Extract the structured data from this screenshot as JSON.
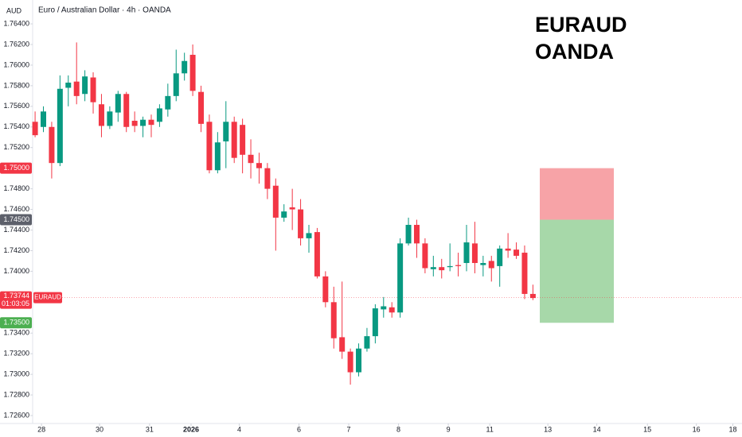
{
  "chart_data": {
    "type": "candlestick",
    "header": "Euro / Australian Dollar · 4h · OANDA",
    "currency": "AUD",
    "annotation_lines": [
      "EURAUD",
      "OANDA"
    ],
    "up_color": "#089981",
    "down_color": "#f23645",
    "x": [
      0,
      1,
      2,
      3,
      4,
      5,
      6,
      7,
      8,
      9,
      10,
      11,
      12,
      13,
      14,
      15,
      16,
      17,
      18,
      19,
      20,
      21,
      22,
      23,
      24,
      25,
      26,
      27,
      28,
      29,
      30,
      31,
      32,
      33,
      34,
      35,
      36,
      37,
      38,
      39,
      40,
      41,
      42,
      43,
      44,
      45,
      46,
      47,
      48,
      49,
      50,
      51,
      52,
      53,
      54,
      55,
      56,
      57,
      58,
      59,
      60
    ],
    "open": [
      1.7545,
      1.754,
      1.754,
      1.7505,
      1.7578,
      1.7584,
      1.7572,
      1.7588,
      1.7562,
      1.7541,
      1.7554,
      1.7572,
      1.7546,
      1.7541,
      1.7547,
      1.7545,
      1.7557,
      1.757,
      1.7592,
      1.761,
      1.7574,
      1.7545,
      1.7498,
      1.7526,
      1.7545,
      1.7542,
      1.7513,
      1.7505,
      1.75,
      1.7483,
      1.7452,
      1.7462,
      1.746,
      1.7432,
      1.7438,
      1.7395,
      1.737,
      1.7336,
      1.7322,
      1.7302,
      1.7325,
      1.7337,
      1.7363,
      1.7365,
      1.736,
      1.7427,
      1.7445,
      1.7427,
      1.7402,
      1.7404,
      1.7404,
      1.7406,
      1.7408,
      1.7427,
      1.7406,
      1.741,
      1.7405,
      1.7422,
      1.7421,
      1.7418,
      1.7378
    ],
    "high": [
      1.7555,
      1.756,
      1.7545,
      1.759,
      1.759,
      1.7622,
      1.7595,
      1.7593,
      1.7572,
      1.756,
      1.7575,
      1.7574,
      1.7555,
      1.755,
      1.7552,
      1.7562,
      1.7582,
      1.7615,
      1.7612,
      1.762,
      1.758,
      1.7552,
      1.7535,
      1.7565,
      1.755,
      1.7548,
      1.7528,
      1.7515,
      1.7505,
      1.749,
      1.7465,
      1.748,
      1.747,
      1.7445,
      1.7442,
      1.74,
      1.7385,
      1.739,
      1.7325,
      1.733,
      1.7345,
      1.7368,
      1.7375,
      1.737,
      1.7432,
      1.7452,
      1.745,
      1.7432,
      1.7415,
      1.7412,
      1.7427,
      1.7418,
      1.7445,
      1.7448,
      1.7415,
      1.7415,
      1.7425,
      1.7437,
      1.7428,
      1.7425,
      1.7387
    ],
    "low": [
      1.753,
      1.7535,
      1.749,
      1.7502,
      1.756,
      1.7562,
      1.7565,
      1.7553,
      1.753,
      1.7538,
      1.7545,
      1.7535,
      1.7535,
      1.753,
      1.753,
      1.754,
      1.755,
      1.7565,
      1.7585,
      1.757,
      1.7535,
      1.7495,
      1.7495,
      1.75,
      1.7505,
      1.7495,
      1.749,
      1.7485,
      1.747,
      1.742,
      1.7448,
      1.744,
      1.7425,
      1.7418,
      1.7393,
      1.7365,
      1.7325,
      1.7315,
      1.729,
      1.7298,
      1.7322,
      1.733,
      1.7355,
      1.7355,
      1.7355,
      1.7425,
      1.7413,
      1.7398,
      1.7395,
      1.7393,
      1.74,
      1.7395,
      1.74,
      1.7398,
      1.7395,
      1.739,
      1.7385,
      1.7413,
      1.7412,
      1.7373,
      1.7372
    ],
    "close": [
      1.7532,
      1.7555,
      1.7505,
      1.7577,
      1.7583,
      1.757,
      1.7589,
      1.7564,
      1.7541,
      1.7555,
      1.7572,
      1.754,
      1.7541,
      1.7547,
      1.7542,
      1.7558,
      1.757,
      1.7592,
      1.7604,
      1.7575,
      1.7543,
      1.7498,
      1.7525,
      1.7545,
      1.751,
      1.7513,
      1.7505,
      1.75,
      1.748,
      1.7452,
      1.7458,
      1.746,
      1.7432,
      1.7437,
      1.7395,
      1.737,
      1.7335,
      1.7322,
      1.7302,
      1.7325,
      1.7337,
      1.7364,
      1.7366,
      1.736,
      1.7427,
      1.7445,
      1.7427,
      1.7403,
      1.7404,
      1.7401,
      1.7405,
      1.7405,
      1.7428,
      1.7408,
      1.7408,
      1.7403,
      1.7422,
      1.742,
      1.7415,
      1.7378,
      1.7374
    ],
    "xlim": [
      -0.2,
      85.2
    ],
    "xticks": [
      {
        "value": 0.77,
        "label": "28"
      },
      {
        "value": 7.77,
        "label": "30"
      },
      {
        "value": 13.8,
        "label": "31"
      },
      {
        "value": 18.8,
        "label": "2026"
      },
      {
        "value": 24.6,
        "label": "4"
      },
      {
        "value": 31.8,
        "label": "6"
      },
      {
        "value": 37.8,
        "label": "7"
      },
      {
        "value": 43.8,
        "label": "8"
      },
      {
        "value": 49.8,
        "label": "9"
      },
      {
        "value": 54.8,
        "label": "11"
      },
      {
        "value": 61.8,
        "label": "13"
      },
      {
        "value": 67.7,
        "label": "14"
      },
      {
        "value": 73.8,
        "label": "15"
      },
      {
        "value": 79.7,
        "label": "16"
      },
      {
        "value": 84.1,
        "label": "18"
      }
    ],
    "ylim": [
      1.72523,
      1.76462
    ],
    "yticks": [
      {
        "value": 1.764,
        "label": "1.76400"
      },
      {
        "value": 1.762,
        "label": "1.76200"
      },
      {
        "value": 1.76,
        "label": "1.76000"
      },
      {
        "value": 1.758,
        "label": "1.75800"
      },
      {
        "value": 1.756,
        "label": "1.75600"
      },
      {
        "value": 1.754,
        "label": "1.75400"
      },
      {
        "value": 1.752,
        "label": "1.75200"
      },
      {
        "value": 1.748,
        "label": "1.74800"
      },
      {
        "value": 1.746,
        "label": "1.74600"
      },
      {
        "value": 1.744,
        "label": "1.74400"
      },
      {
        "value": 1.742,
        "label": "1.74200"
      },
      {
        "value": 1.74,
        "label": "1.74000"
      },
      {
        "value": 1.734,
        "label": "1.73400"
      },
      {
        "value": 1.732,
        "label": "1.73200"
      },
      {
        "value": 1.73,
        "label": "1.73000"
      },
      {
        "value": 1.728,
        "label": "1.72800"
      },
      {
        "value": 1.726,
        "label": "1.72600"
      }
    ],
    "position": {
      "stop": 1.75,
      "entry": 1.745,
      "target": 1.735,
      "stop_color": "#f7a3a7",
      "target_color": "#a7d8a9"
    },
    "price_labels": [
      {
        "value": 1.75,
        "label": "1.75000",
        "color": "#f23645"
      },
      {
        "value": 1.745,
        "label": "1.74500",
        "color": "#5d606b"
      },
      {
        "value": 1.735,
        "label": "1.73500",
        "color": "#4caf50"
      }
    ],
    "last_price": {
      "value": 1.73744,
      "label": "1.73744",
      "countdown": "01:03:05",
      "tag": "EURAUD",
      "color": "#f23645"
    }
  }
}
